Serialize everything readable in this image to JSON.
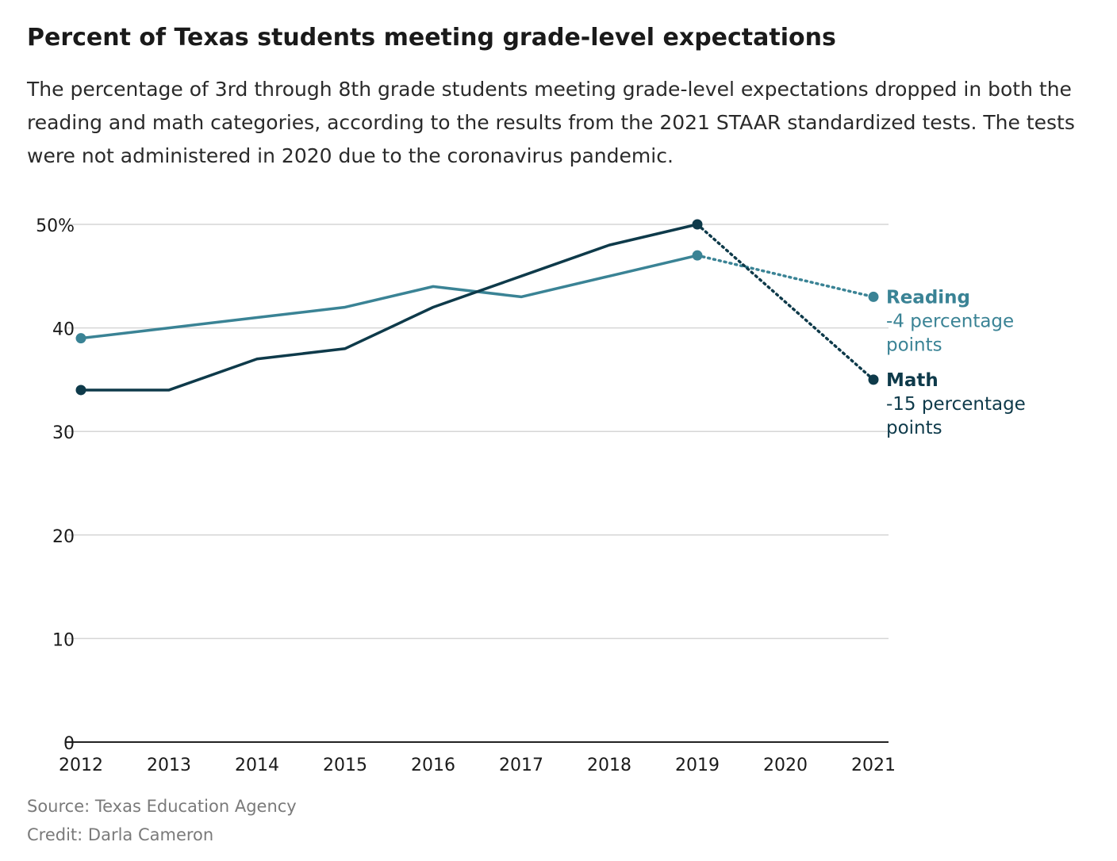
{
  "title": "Percent of Texas students meeting grade-level expectations",
  "subtitle": "The percentage of 3rd through 8th grade students meeting grade-level expectations dropped in both the reading and math categories, according to the results from the 2021 STAAR standardized tests. The tests were not administered in 2020 due to the coronavirus pandemic.",
  "source": "Source: Texas Education Agency",
  "credit": "Credit: Darla Cameron",
  "colors": {
    "reading": "#3a8395",
    "math": "#0e3a4a",
    "grid": "#d6d6d6",
    "axis_text": "#1a1a1a"
  },
  "chart_data": {
    "type": "line",
    "title": "Percent of Texas students meeting grade-level expectations",
    "xlabel": "",
    "ylabel": "",
    "x": [
      2012,
      2013,
      2014,
      2015,
      2016,
      2017,
      2018,
      2019,
      2020,
      2021
    ],
    "x_tick_labels": [
      "2012",
      "2013",
      "2014",
      "2015",
      "2016",
      "2017",
      "2018",
      "2019",
      "2020",
      "2021"
    ],
    "y_ticks": [
      0,
      10,
      20,
      30,
      40,
      50
    ],
    "y_tick_labels": [
      "0",
      "10",
      "20",
      "30",
      "40",
      "50%"
    ],
    "ylim": [
      0,
      50
    ],
    "grid": true,
    "legend": "inline labels at right end of lines",
    "series": [
      {
        "name": "Reading",
        "note": "-4 percentage points",
        "color": "#3a8395",
        "values": [
          39,
          40,
          41,
          42,
          44,
          43,
          45,
          47,
          null,
          43
        ]
      },
      {
        "name": "Math",
        "note": "-15 percentage points",
        "color": "#0e3a4a",
        "values": [
          34,
          34,
          37,
          38,
          42,
          45,
          48,
          50,
          null,
          35
        ]
      }
    ]
  }
}
